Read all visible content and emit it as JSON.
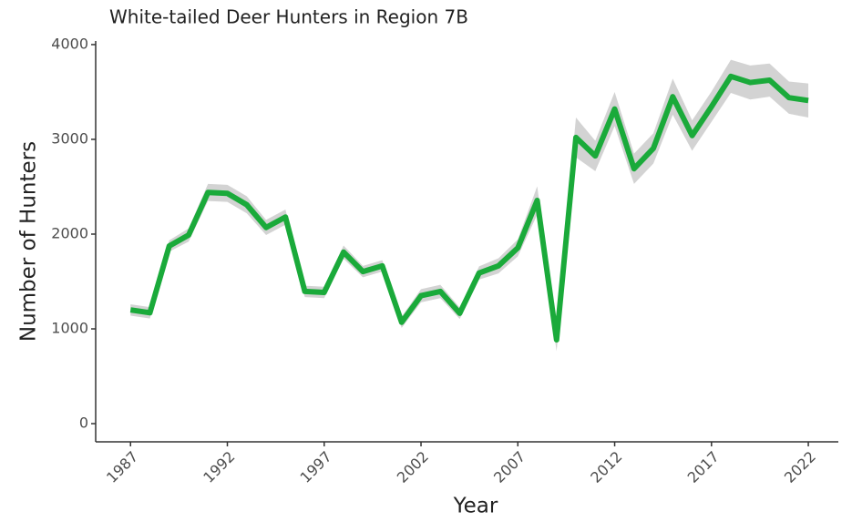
{
  "chart_data": {
    "type": "line",
    "title": "White-tailed Deer Hunters in Region 7B",
    "x_label": "Year",
    "y_label": "Number of Hunters",
    "x": [
      1987,
      1988,
      1989,
      1990,
      1991,
      1992,
      1993,
      1994,
      1995,
      1996,
      1997,
      1998,
      1999,
      2000,
      2001,
      2002,
      2003,
      2004,
      2005,
      2006,
      2007,
      2008,
      2009,
      2010,
      2011,
      2012,
      2013,
      2014,
      2015,
      2016,
      2017,
      2018,
      2019,
      2020,
      2021,
      2022
    ],
    "values": [
      1200,
      1170,
      1875,
      1990,
      2440,
      2430,
      2310,
      2070,
      2180,
      1395,
      1385,
      1810,
      1605,
      1665,
      1070,
      1350,
      1395,
      1165,
      1590,
      1665,
      1855,
      2355,
      885,
      3020,
      2825,
      3320,
      2690,
      2905,
      3450,
      3040,
      3345,
      3665,
      3600,
      3625,
      3440,
      3410
    ],
    "band_upper": [
      1260,
      1230,
      1935,
      2060,
      2530,
      2520,
      2400,
      2150,
      2260,
      1455,
      1445,
      1880,
      1665,
      1725,
      1130,
      1420,
      1465,
      1225,
      1660,
      1745,
      1945,
      2505,
      1005,
      3230,
      2985,
      3500,
      2850,
      3065,
      3640,
      3200,
      3505,
      3840,
      3780,
      3800,
      3610,
      3590
    ],
    "band_lower": [
      1140,
      1110,
      1815,
      1920,
      2350,
      2340,
      2220,
      1990,
      2100,
      1335,
      1325,
      1740,
      1545,
      1605,
      1010,
      1280,
      1325,
      1105,
      1520,
      1585,
      1765,
      2205,
      765,
      2810,
      2665,
      3140,
      2530,
      2745,
      3260,
      2880,
      3185,
      3490,
      3420,
      3450,
      3270,
      3230
    ],
    "color": "#1aaa3a",
    "band_color": "#d3d3d3",
    "xlim": [
      1985.2,
      2023.55
    ],
    "xticks": [
      1987,
      1992,
      1997,
      2002,
      2007,
      2012,
      2017,
      2022
    ],
    "ylim": [
      -192,
      4038
    ],
    "yticks": [
      0,
      1000,
      2000,
      3000,
      4000
    ],
    "grid": false
  }
}
